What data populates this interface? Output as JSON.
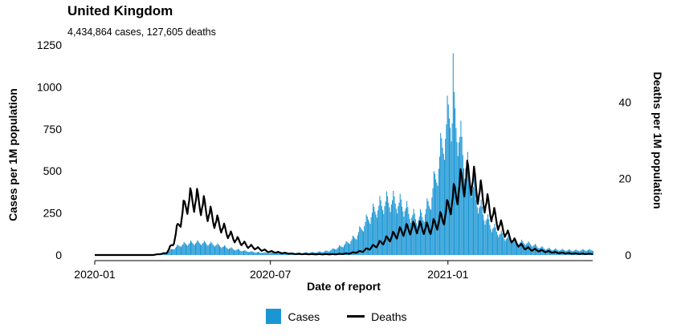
{
  "header": {
    "title": "United Kingdom",
    "subtitle": "4,434,864 cases, 127,605 deaths"
  },
  "legend": {
    "cases_label": "Cases",
    "deaths_label": "Deaths"
  },
  "colors": {
    "cases": "#1a96d4",
    "deaths": "#000000"
  },
  "chart_data": {
    "type": "bar",
    "title": "United Kingdom",
    "subtitle": "4,434,864 cases, 127,605 deaths",
    "xlabel": "Date of report",
    "ylabel": "Cases per 1M population",
    "y2label": "Deaths per 1M population",
    "x_ticks": [
      "2020-01",
      "2020-07",
      "2021-01"
    ],
    "x_range": [
      "2020-01-01",
      "2021-05-31"
    ],
    "ylim": [
      0,
      1250
    ],
    "y_ticks": [
      0,
      250,
      500,
      750,
      1000,
      1250
    ],
    "y2lim": [
      0,
      55
    ],
    "y2_ticks": [
      0,
      20,
      40
    ],
    "legend_position": "bottom",
    "grid": false,
    "series": [
      {
        "name": "Cases",
        "kind": "bar",
        "axis": "left",
        "points": [
          [
            "2020-01-01",
            0
          ],
          [
            "2020-02-28",
            0
          ],
          [
            "2020-03-08",
            2
          ],
          [
            "2020-03-15",
            15
          ],
          [
            "2020-03-22",
            40
          ],
          [
            "2020-03-29",
            60
          ],
          [
            "2020-04-05",
            70
          ],
          [
            "2020-04-12",
            75
          ],
          [
            "2020-04-19",
            75
          ],
          [
            "2020-04-26",
            70
          ],
          [
            "2020-05-03",
            65
          ],
          [
            "2020-05-10",
            55
          ],
          [
            "2020-05-17",
            45
          ],
          [
            "2020-05-24",
            35
          ],
          [
            "2020-05-31",
            28
          ],
          [
            "2020-06-07",
            22
          ],
          [
            "2020-06-14",
            18
          ],
          [
            "2020-06-21",
            15
          ],
          [
            "2020-06-28",
            13
          ],
          [
            "2020-07-05",
            12
          ],
          [
            "2020-07-12",
            11
          ],
          [
            "2020-07-19",
            11
          ],
          [
            "2020-07-26",
            12
          ],
          [
            "2020-08-02",
            13
          ],
          [
            "2020-08-09",
            15
          ],
          [
            "2020-08-16",
            17
          ],
          [
            "2020-08-23",
            20
          ],
          [
            "2020-08-30",
            25
          ],
          [
            "2020-09-06",
            40
          ],
          [
            "2020-09-13",
            55
          ],
          [
            "2020-09-20",
            80
          ],
          [
            "2020-09-27",
            110
          ],
          [
            "2020-10-04",
            170
          ],
          [
            "2020-10-11",
            230
          ],
          [
            "2020-10-18",
            280
          ],
          [
            "2020-10-25",
            310
          ],
          [
            "2020-11-01",
            330
          ],
          [
            "2020-11-08",
            320
          ],
          [
            "2020-11-15",
            300
          ],
          [
            "2020-11-22",
            250
          ],
          [
            "2020-11-29",
            220
          ],
          [
            "2020-12-06",
            240
          ],
          [
            "2020-12-13",
            320
          ],
          [
            "2020-12-20",
            500
          ],
          [
            "2020-12-27",
            700
          ],
          [
            "2021-01-03",
            880
          ],
          [
            "2021-01-10",
            780
          ],
          [
            "2021-01-17",
            600
          ],
          [
            "2021-01-24",
            460
          ],
          [
            "2021-01-31",
            330
          ],
          [
            "2021-02-07",
            240
          ],
          [
            "2021-02-14",
            180
          ],
          [
            "2021-02-21",
            140
          ],
          [
            "2021-02-28",
            110
          ],
          [
            "2021-03-07",
            90
          ],
          [
            "2021-03-14",
            80
          ],
          [
            "2021-03-21",
            75
          ],
          [
            "2021-03-28",
            65
          ],
          [
            "2021-04-04",
            50
          ],
          [
            "2021-04-11",
            40
          ],
          [
            "2021-04-18",
            35
          ],
          [
            "2021-04-25",
            32
          ],
          [
            "2021-05-02",
            30
          ],
          [
            "2021-05-09",
            28
          ],
          [
            "2021-05-16",
            28
          ],
          [
            "2021-05-23",
            30
          ]
        ],
        "peak": [
          "2021-01-06",
          1200
        ]
      },
      {
        "name": "Deaths",
        "kind": "line",
        "axis": "right",
        "points": [
          [
            "2020-01-01",
            0
          ],
          [
            "2020-03-01",
            0
          ],
          [
            "2020-03-15",
            0.5
          ],
          [
            "2020-03-22",
            3
          ],
          [
            "2020-03-29",
            9
          ],
          [
            "2020-04-05",
            14
          ],
          [
            "2020-04-12",
            15
          ],
          [
            "2020-04-19",
            14
          ],
          [
            "2020-04-26",
            12
          ],
          [
            "2020-05-03",
            9.5
          ],
          [
            "2020-05-10",
            8
          ],
          [
            "2020-05-17",
            6
          ],
          [
            "2020-05-24",
            4.5
          ],
          [
            "2020-05-31",
            3.5
          ],
          [
            "2020-06-07",
            2.5
          ],
          [
            "2020-06-14",
            2
          ],
          [
            "2020-06-21",
            1.5
          ],
          [
            "2020-06-28",
            1
          ],
          [
            "2020-07-05",
            0.8
          ],
          [
            "2020-07-12",
            0.6
          ],
          [
            "2020-07-26",
            0.3
          ],
          [
            "2020-08-16",
            0.2
          ],
          [
            "2020-09-06",
            0.2
          ],
          [
            "2020-09-20",
            0.4
          ],
          [
            "2020-10-04",
            1
          ],
          [
            "2020-10-18",
            2.5
          ],
          [
            "2020-11-01",
            4.5
          ],
          [
            "2020-11-15",
            6.5
          ],
          [
            "2020-11-29",
            7.5
          ],
          [
            "2020-12-13",
            7
          ],
          [
            "2020-12-27",
            10
          ],
          [
            "2021-01-10",
            17
          ],
          [
            "2021-01-17",
            20
          ],
          [
            "2021-01-24",
            21
          ],
          [
            "2021-01-31",
            18
          ],
          [
            "2021-02-07",
            15
          ],
          [
            "2021-02-14",
            12
          ],
          [
            "2021-02-21",
            9
          ],
          [
            "2021-02-28",
            6.5
          ],
          [
            "2021-03-07",
            4.5
          ],
          [
            "2021-03-14",
            3
          ],
          [
            "2021-03-21",
            2
          ],
          [
            "2021-03-28",
            1.5
          ],
          [
            "2021-04-11",
            1
          ],
          [
            "2021-04-25",
            0.6
          ],
          [
            "2021-05-09",
            0.4
          ],
          [
            "2021-05-23",
            0.3
          ]
        ]
      }
    ]
  }
}
